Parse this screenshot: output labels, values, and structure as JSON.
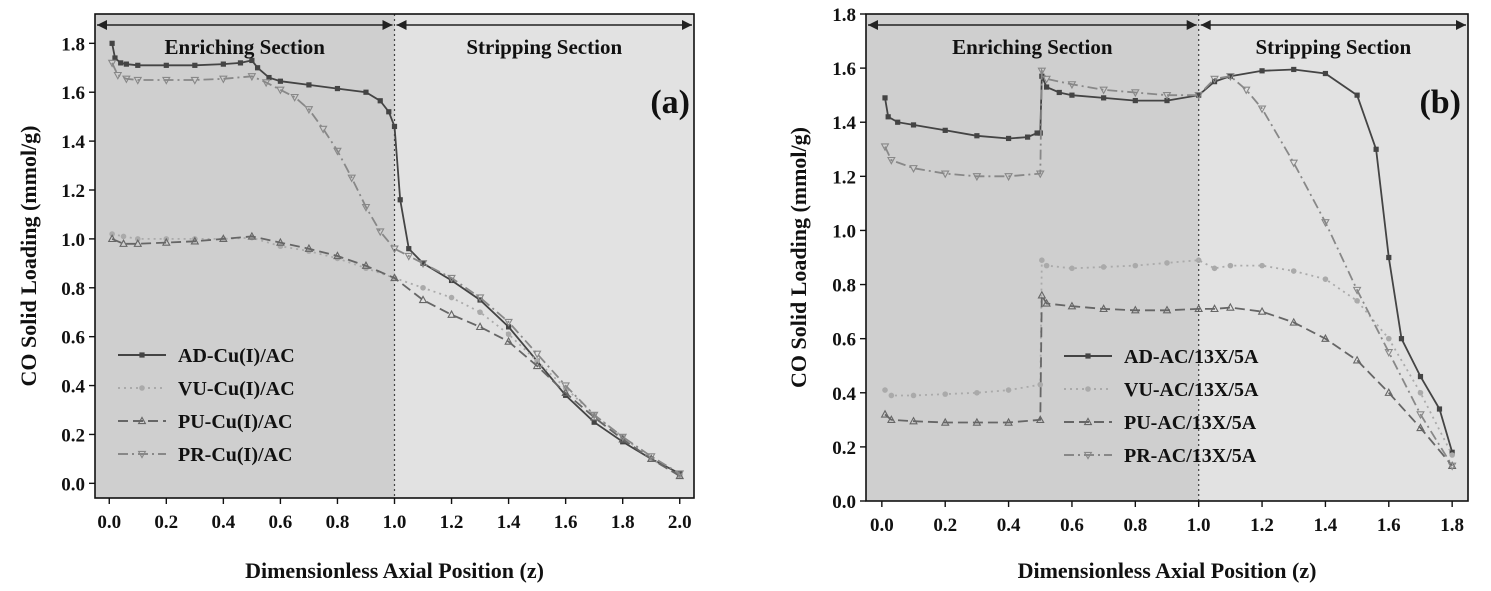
{
  "chart_data": [
    {
      "type": "line",
      "panel_label": "(a)",
      "xlabel": "Dimensionless Axial Position (z)",
      "ylabel": "CO Solid Loading (mmol/g)",
      "xlim": [
        -0.05,
        2.05
      ],
      "ylim": [
        -0.06,
        1.92
      ],
      "xticks": [
        "0.0",
        "0.2",
        "0.4",
        "0.6",
        "0.8",
        "1.0",
        "1.2",
        "1.4",
        "1.6",
        "1.8",
        "2.0"
      ],
      "yticks": [
        "0.0",
        "0.2",
        "0.4",
        "0.6",
        "0.8",
        "1.0",
        "1.2",
        "1.4",
        "1.6",
        "1.8"
      ],
      "sections": {
        "enriching": "Enriching Section",
        "stripping": "Stripping Section",
        "boundary_z": 1.0
      },
      "legend_position": "bottom-left",
      "series": [
        {
          "name": "AD-Cu(I)/AC",
          "marker": "square",
          "dash": "solid",
          "color": "#444444",
          "x": [
            0.01,
            0.02,
            0.04,
            0.06,
            0.1,
            0.2,
            0.3,
            0.4,
            0.46,
            0.5,
            0.52,
            0.56,
            0.6,
            0.7,
            0.8,
            0.9,
            0.95,
            0.98,
            1.0,
            1.02,
            1.05,
            1.1,
            1.2,
            1.3,
            1.4,
            1.5,
            1.6,
            1.7,
            1.8,
            1.9,
            2.0
          ],
          "y": [
            1.8,
            1.74,
            1.72,
            1.715,
            1.71,
            1.71,
            1.71,
            1.715,
            1.72,
            1.73,
            1.7,
            1.66,
            1.645,
            1.63,
            1.615,
            1.6,
            1.565,
            1.52,
            1.46,
            1.16,
            0.96,
            0.9,
            0.83,
            0.75,
            0.64,
            0.5,
            0.36,
            0.25,
            0.17,
            0.1,
            0.04
          ]
        },
        {
          "name": "VU-Cu(I)/AC",
          "marker": "circle",
          "dash": "dot",
          "color": "#aaaaaa",
          "x": [
            0.01,
            0.05,
            0.1,
            0.2,
            0.3,
            0.4,
            0.5,
            0.6,
            0.7,
            0.8,
            0.9,
            1.0,
            1.1,
            1.2,
            1.3,
            1.4,
            1.5,
            1.6,
            1.7,
            1.8,
            1.9,
            2.0
          ],
          "y": [
            1.02,
            1.01,
            1.0,
            1.0,
            1.0,
            1.0,
            1.005,
            0.97,
            0.95,
            0.92,
            0.88,
            0.84,
            0.8,
            0.76,
            0.7,
            0.61,
            0.5,
            0.39,
            0.28,
            0.19,
            0.1,
            0.03
          ]
        },
        {
          "name": "PU-Cu(I)/AC",
          "marker": "triangle-up",
          "dash": "longdash",
          "color": "#666666",
          "x": [
            0.01,
            0.05,
            0.1,
            0.2,
            0.3,
            0.4,
            0.5,
            0.6,
            0.7,
            0.8,
            0.9,
            1.0,
            1.1,
            1.2,
            1.3,
            1.4,
            1.5,
            1.6,
            1.7,
            1.8,
            1.9,
            2.0
          ],
          "y": [
            1.0,
            0.98,
            0.98,
            0.985,
            0.99,
            1.0,
            1.01,
            0.985,
            0.96,
            0.93,
            0.89,
            0.84,
            0.75,
            0.69,
            0.64,
            0.58,
            0.48,
            0.37,
            0.27,
            0.18,
            0.1,
            0.03
          ]
        },
        {
          "name": "PR-Cu(I)/AC",
          "marker": "triangle-down",
          "dash": "dashdot",
          "color": "#888888",
          "x": [
            0.01,
            0.03,
            0.06,
            0.1,
            0.2,
            0.3,
            0.4,
            0.5,
            0.55,
            0.6,
            0.65,
            0.7,
            0.75,
            0.8,
            0.85,
            0.9,
            0.95,
            1.0,
            1.05,
            1.1,
            1.2,
            1.3,
            1.4,
            1.5,
            1.6,
            1.7,
            1.8,
            1.9,
            2.0
          ],
          "y": [
            1.72,
            1.67,
            1.655,
            1.65,
            1.65,
            1.65,
            1.655,
            1.665,
            1.64,
            1.61,
            1.58,
            1.53,
            1.45,
            1.36,
            1.25,
            1.13,
            1.03,
            0.96,
            0.93,
            0.9,
            0.84,
            0.76,
            0.66,
            0.53,
            0.4,
            0.28,
            0.19,
            0.11,
            0.04
          ]
        }
      ]
    },
    {
      "type": "line",
      "panel_label": "(b)",
      "xlabel": "Dimensionless Axial Position (z)",
      "ylabel": "CO Solid Loading (mmol/g)",
      "xlim": [
        -0.05,
        1.85
      ],
      "ylim": [
        0.0,
        1.8
      ],
      "xticks": [
        "0.0",
        "0.2",
        "0.4",
        "0.6",
        "0.8",
        "1.0",
        "1.2",
        "1.4",
        "1.6",
        "1.8"
      ],
      "yticks": [
        "0.0",
        "0.2",
        "0.4",
        "0.6",
        "0.8",
        "1.0",
        "1.2",
        "1.4",
        "1.6",
        "1.8"
      ],
      "sections": {
        "enriching": "Enriching Section",
        "stripping": "Stripping Section",
        "boundary_z": 1.0
      },
      "legend_position": "bottom-left",
      "series": [
        {
          "name": "AD-AC/13X/5A",
          "marker": "square",
          "dash": "solid",
          "color": "#444444",
          "x": [
            0.01,
            0.02,
            0.05,
            0.1,
            0.2,
            0.3,
            0.4,
            0.46,
            0.49,
            0.5,
            0.505,
            0.52,
            0.56,
            0.6,
            0.7,
            0.8,
            0.9,
            1.0,
            1.05,
            1.1,
            1.2,
            1.3,
            1.4,
            1.5,
            1.56,
            1.6,
            1.64,
            1.7,
            1.76,
            1.8
          ],
          "y": [
            1.49,
            1.42,
            1.4,
            1.39,
            1.37,
            1.35,
            1.34,
            1.345,
            1.36,
            1.36,
            1.57,
            1.53,
            1.51,
            1.5,
            1.49,
            1.48,
            1.48,
            1.5,
            1.55,
            1.57,
            1.59,
            1.595,
            1.58,
            1.5,
            1.3,
            0.9,
            0.6,
            0.46,
            0.34,
            0.18
          ]
        },
        {
          "name": "VU-AC/13X/5A",
          "marker": "circle",
          "dash": "dot",
          "color": "#aaaaaa",
          "x": [
            0.01,
            0.03,
            0.1,
            0.2,
            0.3,
            0.4,
            0.5,
            0.505,
            0.52,
            0.6,
            0.7,
            0.8,
            0.9,
            1.0,
            1.05,
            1.1,
            1.2,
            1.3,
            1.4,
            1.5,
            1.6,
            1.7,
            1.8
          ],
          "y": [
            0.41,
            0.39,
            0.39,
            0.395,
            0.4,
            0.41,
            0.43,
            0.89,
            0.87,
            0.86,
            0.865,
            0.87,
            0.88,
            0.89,
            0.86,
            0.87,
            0.87,
            0.85,
            0.82,
            0.74,
            0.6,
            0.4,
            0.17
          ]
        },
        {
          "name": "PU-AC/13X/5A",
          "marker": "triangle-up",
          "dash": "longdash",
          "color": "#666666",
          "x": [
            0.01,
            0.03,
            0.1,
            0.2,
            0.3,
            0.4,
            0.5,
            0.505,
            0.52,
            0.6,
            0.7,
            0.8,
            0.9,
            1.0,
            1.05,
            1.1,
            1.2,
            1.3,
            1.4,
            1.5,
            1.6,
            1.7,
            1.8
          ],
          "y": [
            0.32,
            0.3,
            0.295,
            0.29,
            0.29,
            0.29,
            0.3,
            0.76,
            0.73,
            0.72,
            0.71,
            0.705,
            0.705,
            0.71,
            0.71,
            0.715,
            0.7,
            0.66,
            0.6,
            0.52,
            0.4,
            0.27,
            0.13
          ]
        },
        {
          "name": "PR-AC/13X/5A",
          "marker": "triangle-down",
          "dash": "dashdot",
          "color": "#888888",
          "x": [
            0.01,
            0.03,
            0.1,
            0.2,
            0.3,
            0.4,
            0.5,
            0.505,
            0.52,
            0.6,
            0.7,
            0.8,
            0.9,
            1.0,
            1.05,
            1.1,
            1.15,
            1.2,
            1.3,
            1.4,
            1.5,
            1.6,
            1.7,
            1.8
          ],
          "y": [
            1.31,
            1.26,
            1.23,
            1.21,
            1.2,
            1.2,
            1.21,
            1.59,
            1.56,
            1.54,
            1.52,
            1.51,
            1.5,
            1.5,
            1.56,
            1.57,
            1.52,
            1.45,
            1.25,
            1.03,
            0.78,
            0.55,
            0.32,
            0.13
          ]
        }
      ]
    }
  ]
}
